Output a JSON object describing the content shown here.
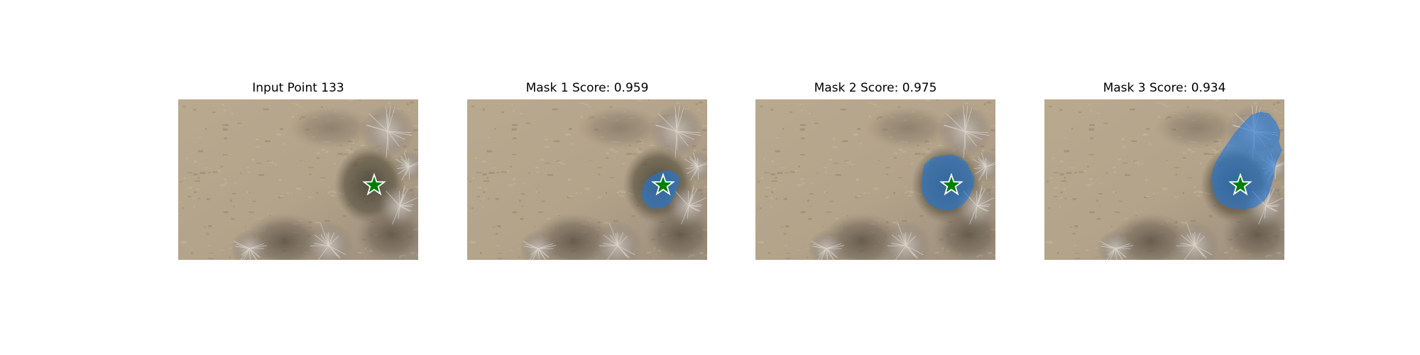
{
  "panels": [
    {
      "title": "Input Point 133",
      "mask": "none"
    },
    {
      "title": "Mask 1 Score: 0.959",
      "mask": "small"
    },
    {
      "title": "Mask 2 Score: 0.975",
      "mask": "medium"
    },
    {
      "title": "Mask 3 Score: 0.934",
      "mask": "large"
    }
  ],
  "colors": {
    "background": "#ffffff",
    "ground": "#b3a38c",
    "mask_fill": "#1e78dc",
    "star_fill": "#008000",
    "star_stroke": "#ffffff"
  },
  "marker": {
    "shape": "star-icon"
  }
}
